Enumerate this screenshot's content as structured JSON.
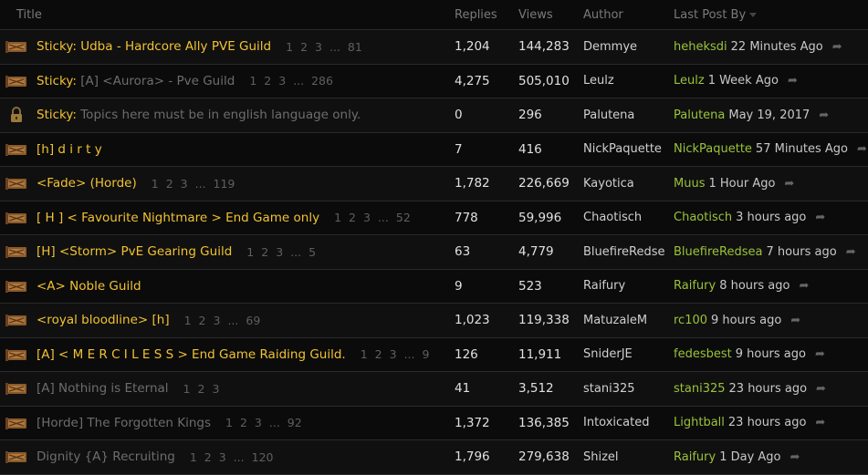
{
  "headers": {
    "title": "Title",
    "replies": "Replies",
    "views": "Views",
    "author": "Author",
    "last_post_by": "Last Post By"
  },
  "rows": [
    {
      "icon": "guild-banner-icon",
      "sticky_label": "Sticky:",
      "title": "Udba - Hardcore Ally PVE Guild",
      "title_style": "yellow",
      "pages": [
        "1",
        "2",
        "3",
        "...",
        "81"
      ],
      "replies": "1,204",
      "views": "144,283",
      "author": "Demmye",
      "last_name": "heheksdi",
      "last_time": "22 Minutes Ago"
    },
    {
      "icon": "guild-banner-icon",
      "sticky_label": "Sticky:",
      "title": "[A] <Aurora> - Pve Guild",
      "title_style": "grey",
      "pages": [
        "1",
        "2",
        "3",
        "...",
        "286"
      ],
      "replies": "4,275",
      "views": "505,010",
      "author": "Leulz",
      "last_name": "Leulz",
      "last_time": "1 Week Ago"
    },
    {
      "icon": "lock-icon",
      "sticky_label": "Sticky:",
      "title": "Topics here must be in english language only.",
      "title_style": "grey",
      "pages": [],
      "replies": "0",
      "views": "296",
      "author": "Palutena",
      "last_name": "Palutena",
      "last_time": "May 19, 2017"
    },
    {
      "icon": "guild-banner-icon",
      "sticky_label": "",
      "title": "[h] d i r t y",
      "title_style": "yellow",
      "pages": [],
      "replies": "7",
      "views": "416",
      "author": "NickPaquette",
      "last_name": "NickPaquette",
      "last_time": "57 Minutes Ago"
    },
    {
      "icon": "guild-banner-icon",
      "sticky_label": "",
      "title": "<Fade> (Horde)",
      "title_style": "yellow",
      "pages": [
        "1",
        "2",
        "3",
        "...",
        "119"
      ],
      "replies": "1,782",
      "views": "226,669",
      "author": "Kayotica",
      "last_name": "Muus",
      "last_time": "1 Hour Ago"
    },
    {
      "icon": "guild-banner-icon",
      "sticky_label": "",
      "title": "[ H ] < Favourite Nightmare > End Game only",
      "title_style": "yellow",
      "pages": [
        "1",
        "2",
        "3",
        "...",
        "52"
      ],
      "replies": "778",
      "views": "59,996",
      "author": "Chaotisch",
      "last_name": "Chaotisch",
      "last_time": "3 hours ago"
    },
    {
      "icon": "guild-banner-icon",
      "sticky_label": "",
      "title": "[H] <Storm> PvE Gearing Guild",
      "title_style": "yellow",
      "pages": [
        "1",
        "2",
        "3",
        "...",
        "5"
      ],
      "replies": "63",
      "views": "4,779",
      "author": "BluefireRedse",
      "last_name": "BluefireRedsea",
      "last_time": "7 hours ago"
    },
    {
      "icon": "guild-banner-icon",
      "sticky_label": "",
      "title": "<A> Noble Guild",
      "title_style": "yellow",
      "pages": [],
      "replies": "9",
      "views": "523",
      "author": "Raifury",
      "last_name": "Raifury",
      "last_time": "8 hours ago"
    },
    {
      "icon": "guild-banner-icon",
      "sticky_label": "",
      "title": "<royal bloodline> [h]",
      "title_style": "yellow",
      "pages": [
        "1",
        "2",
        "3",
        "...",
        "69"
      ],
      "replies": "1,023",
      "views": "119,338",
      "author": "MatuzaleM",
      "last_name": "rc100",
      "last_time": "9 hours ago"
    },
    {
      "icon": "guild-banner-icon",
      "sticky_label": "",
      "title": "[A] < M E R C I L E S S > End Game Raiding Guild.",
      "title_style": "yellow",
      "pages": [
        "1",
        "2",
        "3",
        "...",
        "9"
      ],
      "replies": "126",
      "views": "11,911",
      "author": "SniderJE",
      "last_name": "fedesbest",
      "last_time": "9 hours ago"
    },
    {
      "icon": "guild-banner-icon",
      "sticky_label": "",
      "title": "[A] Nothing is Eternal",
      "title_style": "grey",
      "pages": [
        "1",
        "2",
        "3"
      ],
      "replies": "41",
      "views": "3,512",
      "author": "stani325",
      "last_name": "stani325",
      "last_time": "23 hours ago"
    },
    {
      "icon": "guild-banner-icon",
      "sticky_label": "",
      "title": "[Horde] The Forgotten Kings",
      "title_style": "grey",
      "pages": [
        "1",
        "2",
        "3",
        "...",
        "92"
      ],
      "replies": "1,372",
      "views": "136,385",
      "author": "Intoxicated",
      "last_name": "Lightball",
      "last_time": "23 hours ago"
    },
    {
      "icon": "guild-banner-icon",
      "sticky_label": "",
      "title": "Dignity {A} Recruiting",
      "title_style": "grey",
      "pages": [
        "1",
        "2",
        "3",
        "...",
        "120"
      ],
      "replies": "1,796",
      "views": "279,638",
      "author": "Shizel",
      "last_name": "Raifury",
      "last_time": "1 Day Ago"
    }
  ]
}
